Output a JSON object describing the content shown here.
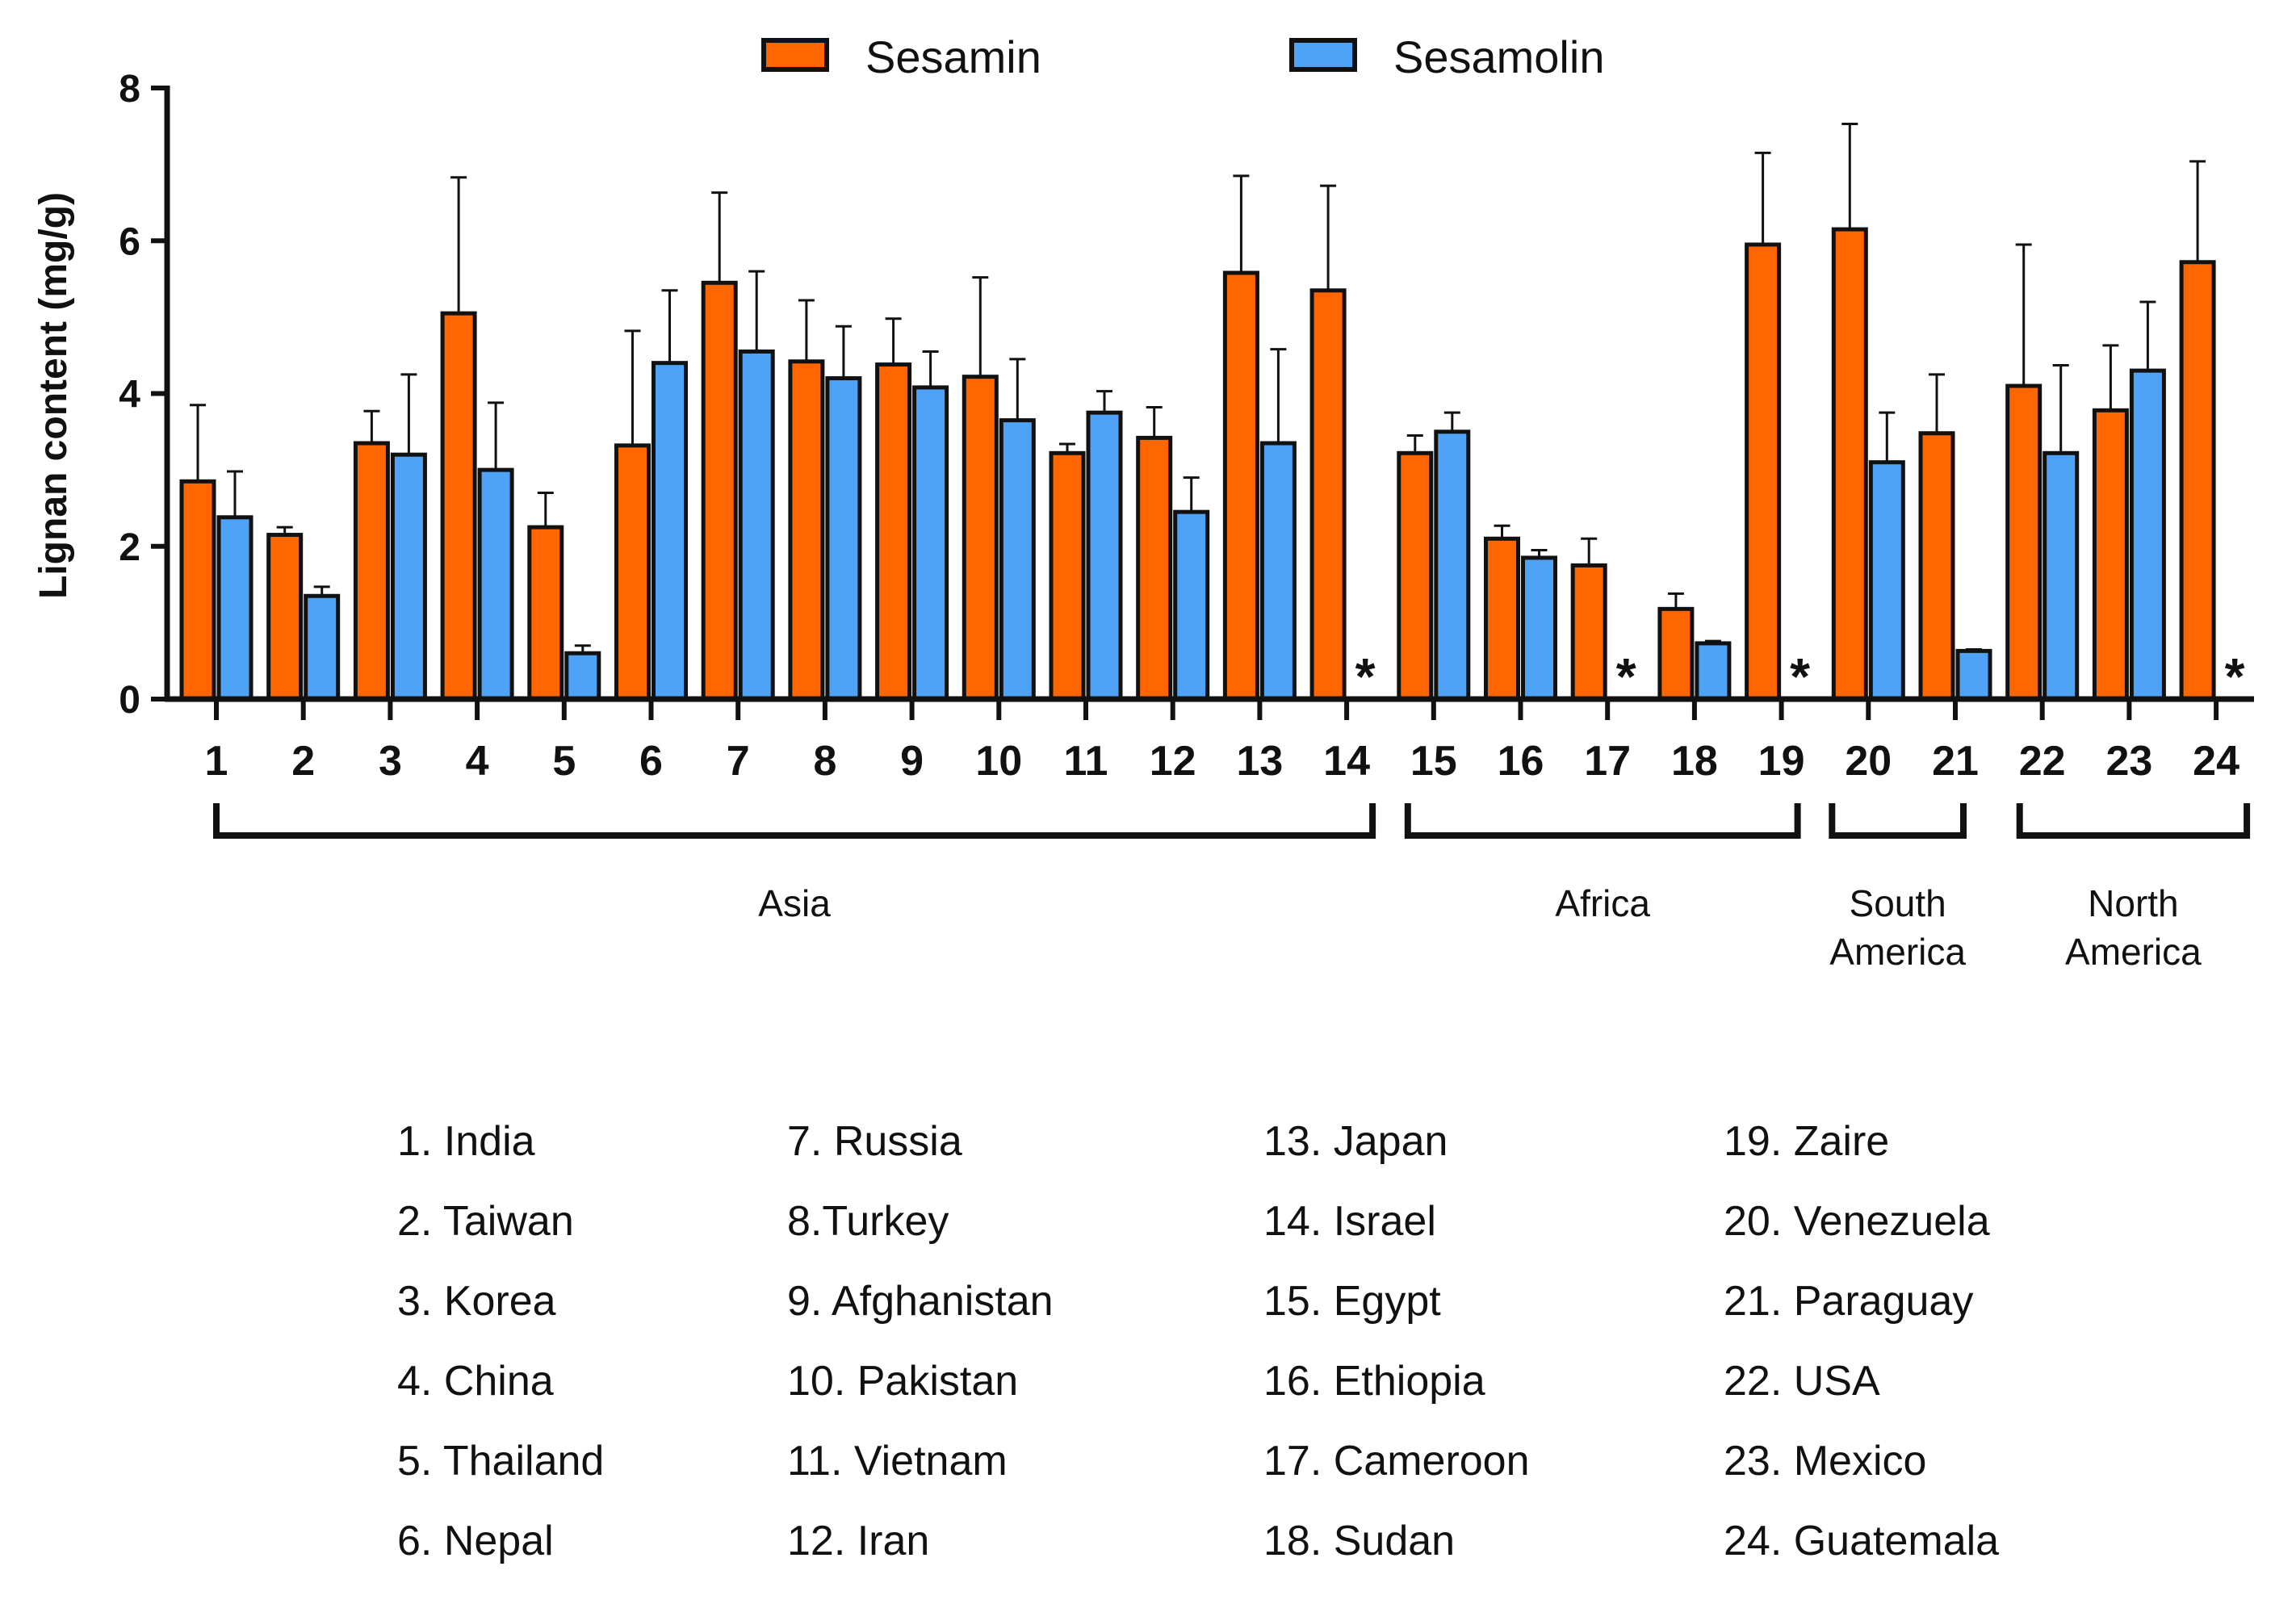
{
  "chart_data": {
    "type": "bar",
    "ylabel": "Lignan content (mg/g)",
    "ylim": [
      0,
      8
    ],
    "yticks": [
      0,
      2,
      4,
      6,
      8
    ],
    "categories": [
      "1",
      "2",
      "3",
      "4",
      "5",
      "6",
      "7",
      "8",
      "9",
      "10",
      "11",
      "12",
      "13",
      "14",
      "15",
      "16",
      "17",
      "18",
      "19",
      "20",
      "21",
      "22",
      "23",
      "24"
    ],
    "series": [
      {
        "name": "Sesamin",
        "color": "#FF6600",
        "values": [
          2.85,
          2.15,
          3.35,
          5.05,
          2.25,
          3.32,
          5.45,
          4.42,
          4.38,
          4.22,
          3.22,
          3.42,
          5.58,
          5.35,
          3.22,
          2.1,
          1.75,
          1.18,
          5.95,
          6.15,
          3.48,
          4.1,
          3.78,
          5.72
        ],
        "errors": [
          1.0,
          0.1,
          0.42,
          1.78,
          0.45,
          1.5,
          1.18,
          0.8,
          0.6,
          1.3,
          0.12,
          0.4,
          1.27,
          1.37,
          0.23,
          0.17,
          0.35,
          0.2,
          1.2,
          1.38,
          0.77,
          1.85,
          0.85,
          1.32
        ]
      },
      {
        "name": "Sesamolin",
        "color": "#4FA3F7",
        "values": [
          2.38,
          1.35,
          3.2,
          3.0,
          0.6,
          4.4,
          4.55,
          4.2,
          4.08,
          3.65,
          3.75,
          2.45,
          3.35,
          null,
          3.5,
          1.85,
          null,
          0.73,
          null,
          3.1,
          0.63,
          3.22,
          4.3,
          null
        ],
        "errors": [
          0.6,
          0.12,
          1.05,
          0.88,
          0.1,
          0.95,
          1.05,
          0.68,
          0.47,
          0.8,
          0.28,
          0.45,
          1.23,
          null,
          0.25,
          0.1,
          null,
          0.03,
          null,
          0.65,
          0.02,
          1.15,
          0.9,
          null
        ]
      }
    ],
    "not_detected_marker": "*",
    "regions": [
      {
        "name": "Asia",
        "lines": [
          "Asia"
        ],
        "from": 1,
        "to": 14
      },
      {
        "name": "Africa",
        "lines": [
          "Africa"
        ],
        "from": 15,
        "to": 19
      },
      {
        "name": "South America",
        "lines": [
          "South",
          "America"
        ],
        "from": 20,
        "to": 21
      },
      {
        "name": "North America",
        "lines": [
          "North",
          "America"
        ],
        "from": 22,
        "to": 24
      }
    ],
    "legend_position": "top-center",
    "country_legend": [
      [
        "1. India",
        "2. Taiwan",
        "3. Korea",
        "4. China",
        "5. Thailand",
        "6. Nepal"
      ],
      [
        "7. Russia",
        "8.Turkey",
        "9. Afghanistan",
        "10. Pakistan",
        "11. Vietnam",
        "12. Iran"
      ],
      [
        "13. Japan",
        "14. Israel",
        "15. Egypt",
        "16. Ethiopia",
        "17. Cameroon",
        "18. Sudan"
      ],
      [
        "19. Zaire",
        "20. Venezuela",
        "21. Paraguay",
        "22. USA",
        "23. Mexico",
        "24. Guatemala"
      ]
    ]
  }
}
